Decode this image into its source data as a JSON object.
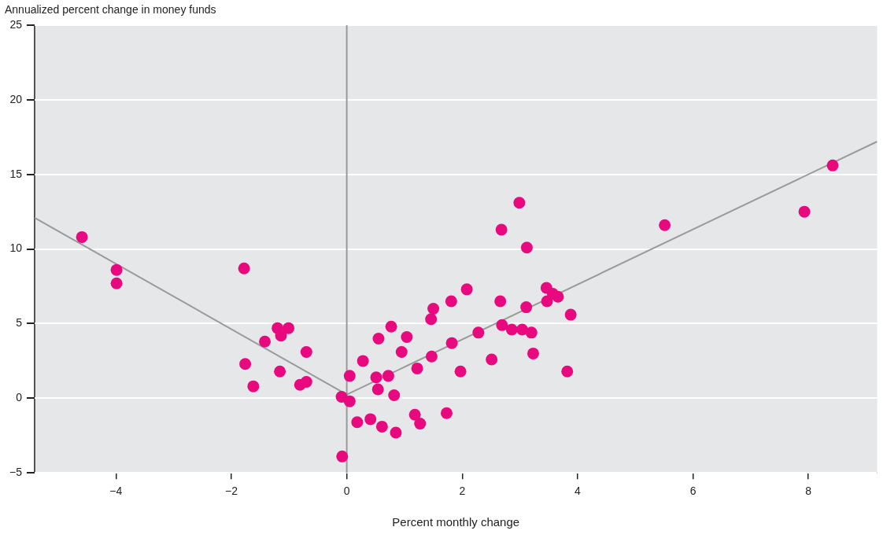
{
  "chart_data": {
    "type": "scatter",
    "ylabel": "Annualized percent change in money funds",
    "xlabel": "Percent monthly change",
    "xlim": [
      -5.41,
      9.19
    ],
    "ylim": [
      -5,
      25
    ],
    "xticks": [
      {
        "value": -4,
        "label": "−4"
      },
      {
        "value": -2,
        "label": "−2"
      },
      0,
      2,
      4,
      6,
      8
    ],
    "yticks": [
      {
        "value": -5,
        "label": "−5"
      },
      0,
      5,
      10,
      15,
      20,
      25
    ],
    "grid": "y",
    "legend": false,
    "marker": "circle",
    "ref_lines": [
      {
        "axis": "x",
        "value": 0,
        "color": "#9a9a9a"
      }
    ],
    "series": [
      {
        "color": "#e8097f",
        "x": [
          -4.59,
          -3.99,
          -3.99,
          -1.78,
          -1.76,
          -1.62,
          -1.42,
          -1.2,
          -1.14,
          -1.01,
          -1.16,
          -0.81,
          -0.7,
          -0.7,
          -0.09,
          0.05,
          0.05,
          -0.08,
          0.18,
          0.41,
          0.61,
          0.85,
          0.28,
          0.51,
          0.54,
          0.55,
          0.72,
          0.77,
          0.82,
          0.95,
          1.04,
          1.18,
          1.22,
          1.27,
          1.46,
          1.5,
          1.47,
          1.73,
          1.81,
          1.82,
          1.97,
          2.08,
          2.28,
          2.51,
          2.68,
          2.66,
          2.69,
          2.86,
          2.99,
          3.04,
          3.12,
          3.11,
          3.2,
          3.23,
          3.46,
          3.47,
          3.57,
          3.66,
          3.82,
          3.88,
          5.51,
          7.93,
          8.42
        ],
        "values": [
          10.8,
          8.6,
          7.7,
          8.7,
          2.3,
          0.8,
          3.8,
          4.7,
          4.2,
          4.7,
          1.8,
          0.9,
          1.1,
          3.1,
          0.1,
          -0.2,
          1.5,
          -3.9,
          -1.6,
          -1.4,
          -1.9,
          -2.3,
          2.5,
          1.4,
          0.6,
          4.0,
          1.5,
          4.8,
          0.2,
          3.1,
          4.1,
          -1.1,
          2.0,
          -1.7,
          5.3,
          6.0,
          2.8,
          -1.0,
          6.5,
          3.7,
          1.8,
          7.3,
          4.4,
          2.6,
          11.3,
          6.5,
          4.9,
          4.6,
          13.1,
          4.6,
          10.1,
          6.1,
          4.4,
          3.0,
          7.4,
          6.5,
          7.0,
          6.8,
          1.8,
          5.6,
          11.6,
          12.5,
          15.6
        ]
      },
      {
        "type": "line",
        "marker": "none",
        "color": "#9a9a9a",
        "x": [
          -5.41,
          0
        ],
        "values": [
          12.1,
          0.25
        ]
      },
      {
        "type": "line",
        "marker": "none",
        "color": "#9a9a9a",
        "x": [
          0,
          9.19
        ],
        "values": [
          0.25,
          17.2
        ]
      }
    ]
  }
}
